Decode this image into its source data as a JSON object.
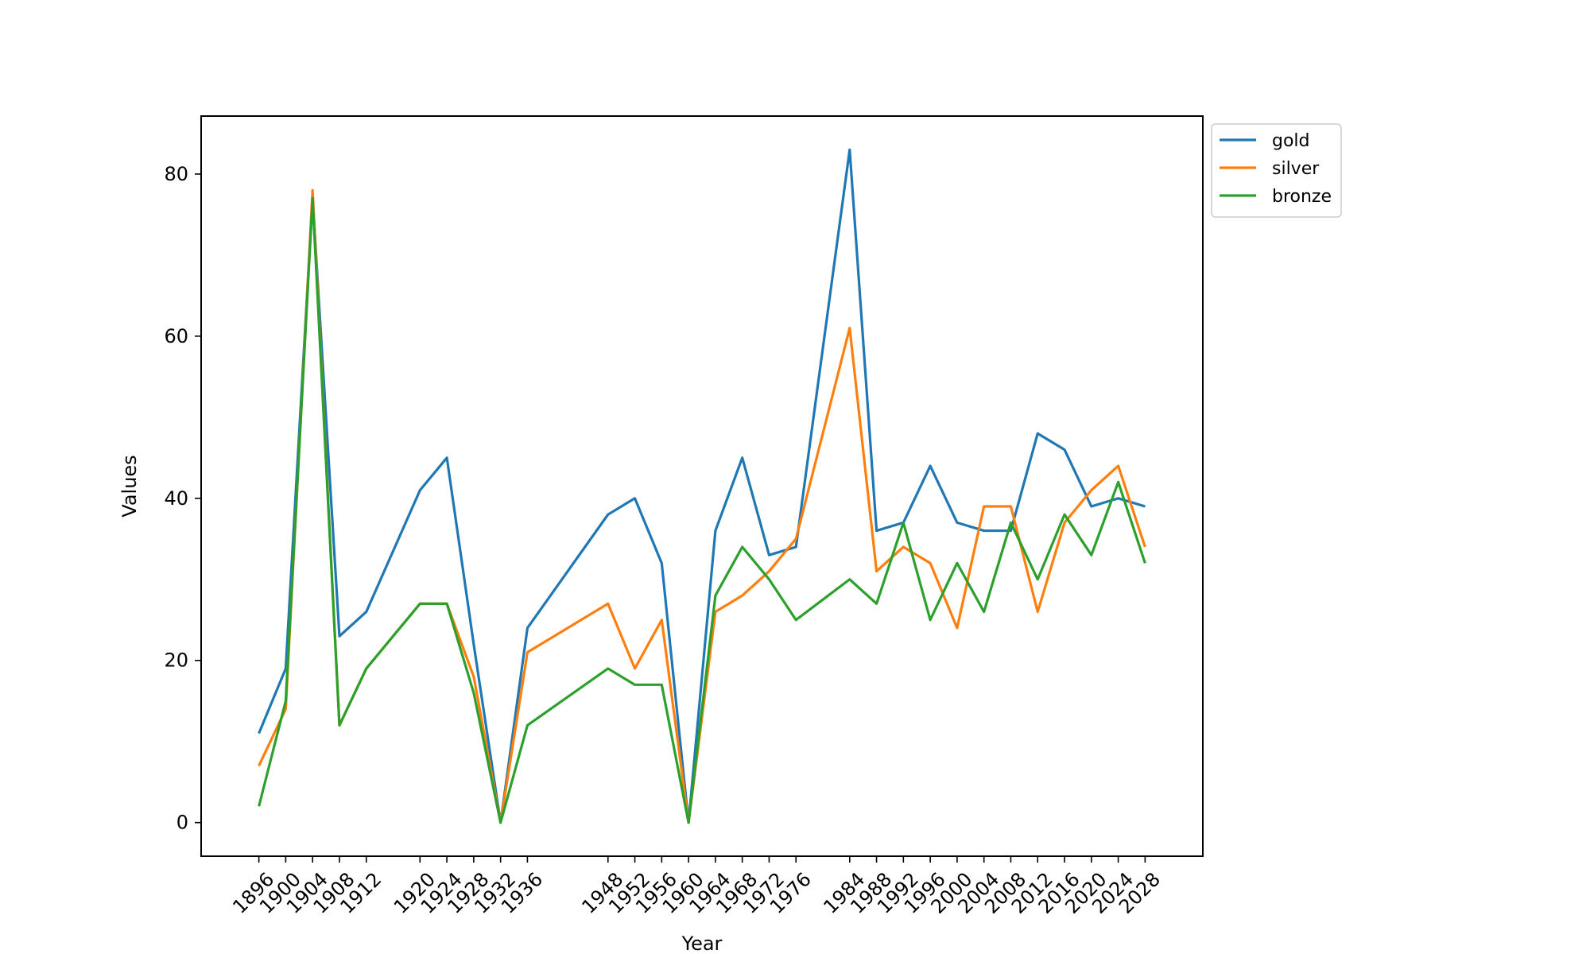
{
  "chart_data": {
    "type": "line",
    "xlabel": "Year",
    "ylabel": "Values",
    "x": [
      1896,
      1900,
      1904,
      1908,
      1912,
      1920,
      1924,
      1928,
      1932,
      1936,
      1948,
      1952,
      1956,
      1960,
      1964,
      1968,
      1972,
      1976,
      1984,
      1988,
      1992,
      1996,
      2000,
      2004,
      2008,
      2012,
      2016,
      2020,
      2024,
      2028
    ],
    "x_tick_labels": [
      "1896",
      "1900",
      "1904",
      "1908",
      "1912",
      "1920",
      "1924",
      "1928",
      "1932",
      "1936",
      "1948",
      "1952",
      "1956",
      "1960",
      "1964",
      "1968",
      "1972",
      "1976",
      "1984",
      "1988",
      "1992",
      "1996",
      "2000",
      "2004",
      "2008",
      "2012",
      "2016",
      "2020",
      "2024",
      "2028"
    ],
    "y_ticks": [
      0,
      20,
      40,
      60,
      80
    ],
    "y_tick_labels": [
      "0",
      "20",
      "40",
      "60",
      "80"
    ],
    "xlim": [
      1887.4,
      2036.6
    ],
    "ylim": [
      -4.15,
      87.15
    ],
    "grid": false,
    "legend_position": "outside-top-right",
    "series": [
      {
        "name": "gold",
        "color": "#1f77b4",
        "values": [
          11,
          19,
          77,
          23,
          26,
          41,
          45,
          22,
          0,
          24,
          38,
          40,
          32,
          0,
          36,
          45,
          33,
          34,
          83,
          36,
          37,
          44,
          37,
          36,
          36,
          48,
          46,
          39,
          40,
          39
        ]
      },
      {
        "name": "silver",
        "color": "#ff7f0e",
        "values": [
          7,
          14,
          78,
          12,
          19,
          27,
          27,
          18,
          0,
          21,
          27,
          19,
          25,
          0,
          26,
          28,
          31,
          35,
          61,
          31,
          34,
          32,
          24,
          39,
          39,
          26,
          37,
          41,
          44,
          34
        ]
      },
      {
        "name": "bronze",
        "color": "#2ca02c",
        "values": [
          2,
          15,
          77,
          12,
          19,
          27,
          27,
          16,
          0,
          12,
          19,
          17,
          17,
          0,
          28,
          34,
          30,
          25,
          30,
          27,
          37,
          25,
          32,
          26,
          37,
          30,
          38,
          33,
          42,
          32
        ]
      }
    ]
  }
}
